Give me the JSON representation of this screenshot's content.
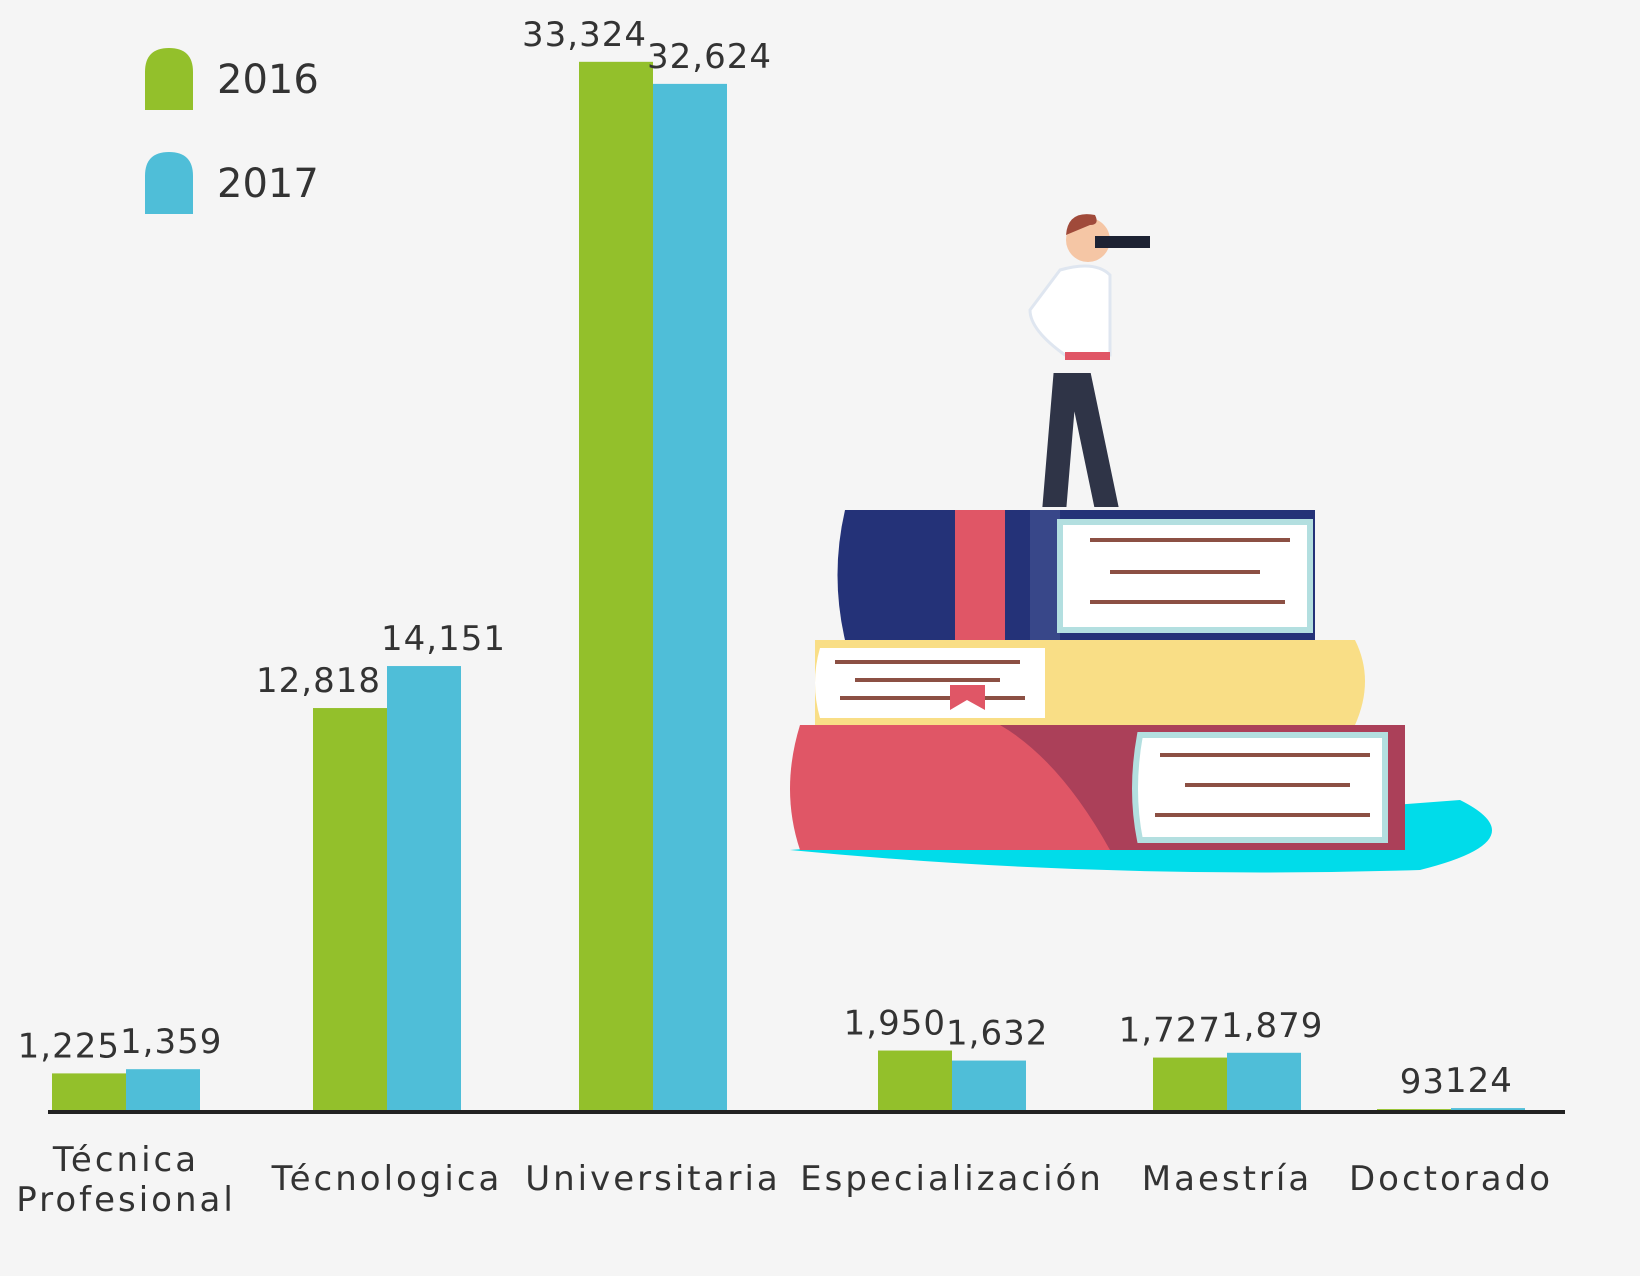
{
  "chart_data": {
    "type": "bar",
    "categories": [
      "Técnica Profesional",
      "Técnologica",
      "Universitaria",
      "Especialización",
      "Maestría",
      "Doctorado"
    ],
    "series": [
      {
        "name": "2016",
        "color": "#93c02b",
        "values": [
          1225,
          12818,
          33324,
          1950,
          1727,
          93
        ],
        "value_labels": [
          "1,225",
          "12,818",
          "33,324",
          "1,950",
          "1,727",
          "93"
        ]
      },
      {
        "name": "2017",
        "color": "#4fbed8",
        "values": [
          1359,
          14151,
          32624,
          1632,
          1879,
          124
        ],
        "value_labels": [
          "1,359",
          "14,151",
          "32,624",
          "1,632",
          "1,879",
          "124"
        ]
      }
    ],
    "ylim": [
      0,
      35000
    ]
  }
}
